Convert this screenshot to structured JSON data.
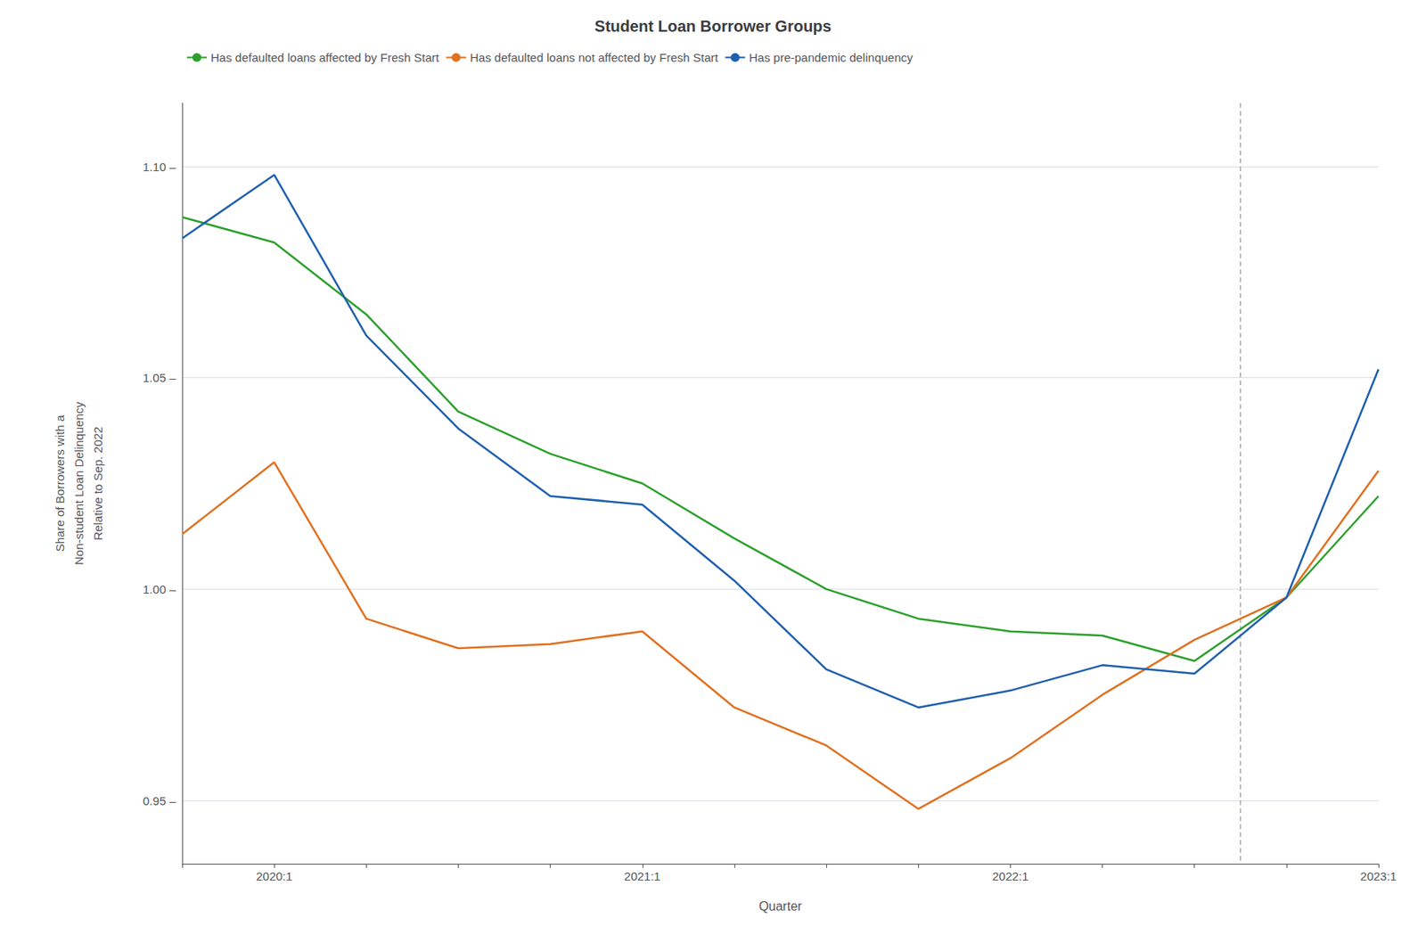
{
  "chart_data": {
    "type": "line",
    "title": "Student Loan Borrower Groups",
    "xlabel": "Quarter",
    "ylabel": "Share of Borrowers with a\nNon-student Loan Delinquency\nRelative to Sep. 2022",
    "categories": [
      null,
      "2020:1",
      null,
      null,
      null,
      "2021:1",
      null,
      null,
      null,
      "2022:1",
      null,
      null,
      null,
      "2023:1"
    ],
    "series": [
      {
        "name": "Has defaulted loans affected by Fresh Start",
        "color": "#2ca02c",
        "values": [
          1.088,
          1.082,
          1.065,
          1.042,
          1.032,
          1.025,
          1.012,
          1.0,
          0.993,
          0.99,
          0.989,
          0.983,
          0.998,
          1.022
        ]
      },
      {
        "name": "Has defaulted loans not affected by Fresh Start",
        "color": "#e07020",
        "values": [
          1.013,
          1.03,
          0.993,
          0.986,
          0.987,
          0.99,
          0.972,
          0.963,
          0.948,
          0.96,
          0.975,
          0.988,
          0.998,
          1.028
        ]
      },
      {
        "name": "Has pre-pandemic delinquency",
        "color": "#1f5fad",
        "values": [
          1.083,
          1.098,
          1.06,
          1.038,
          1.022,
          1.02,
          1.002,
          0.981,
          0.972,
          0.976,
          0.982,
          0.98,
          0.998,
          1.052
        ]
      }
    ],
    "ylim": [
      0.935,
      1.115
    ],
    "yticks": [
      {
        "value": 0.95,
        "label": "0.95 –"
      },
      {
        "value": 1.0,
        "label": "1.00 –"
      },
      {
        "value": 1.05,
        "label": "1.05 –"
      },
      {
        "value": 1.1,
        "label": "1.10 –"
      }
    ],
    "grid": true,
    "legend": "upper left",
    "vline_x": 11.5
  }
}
